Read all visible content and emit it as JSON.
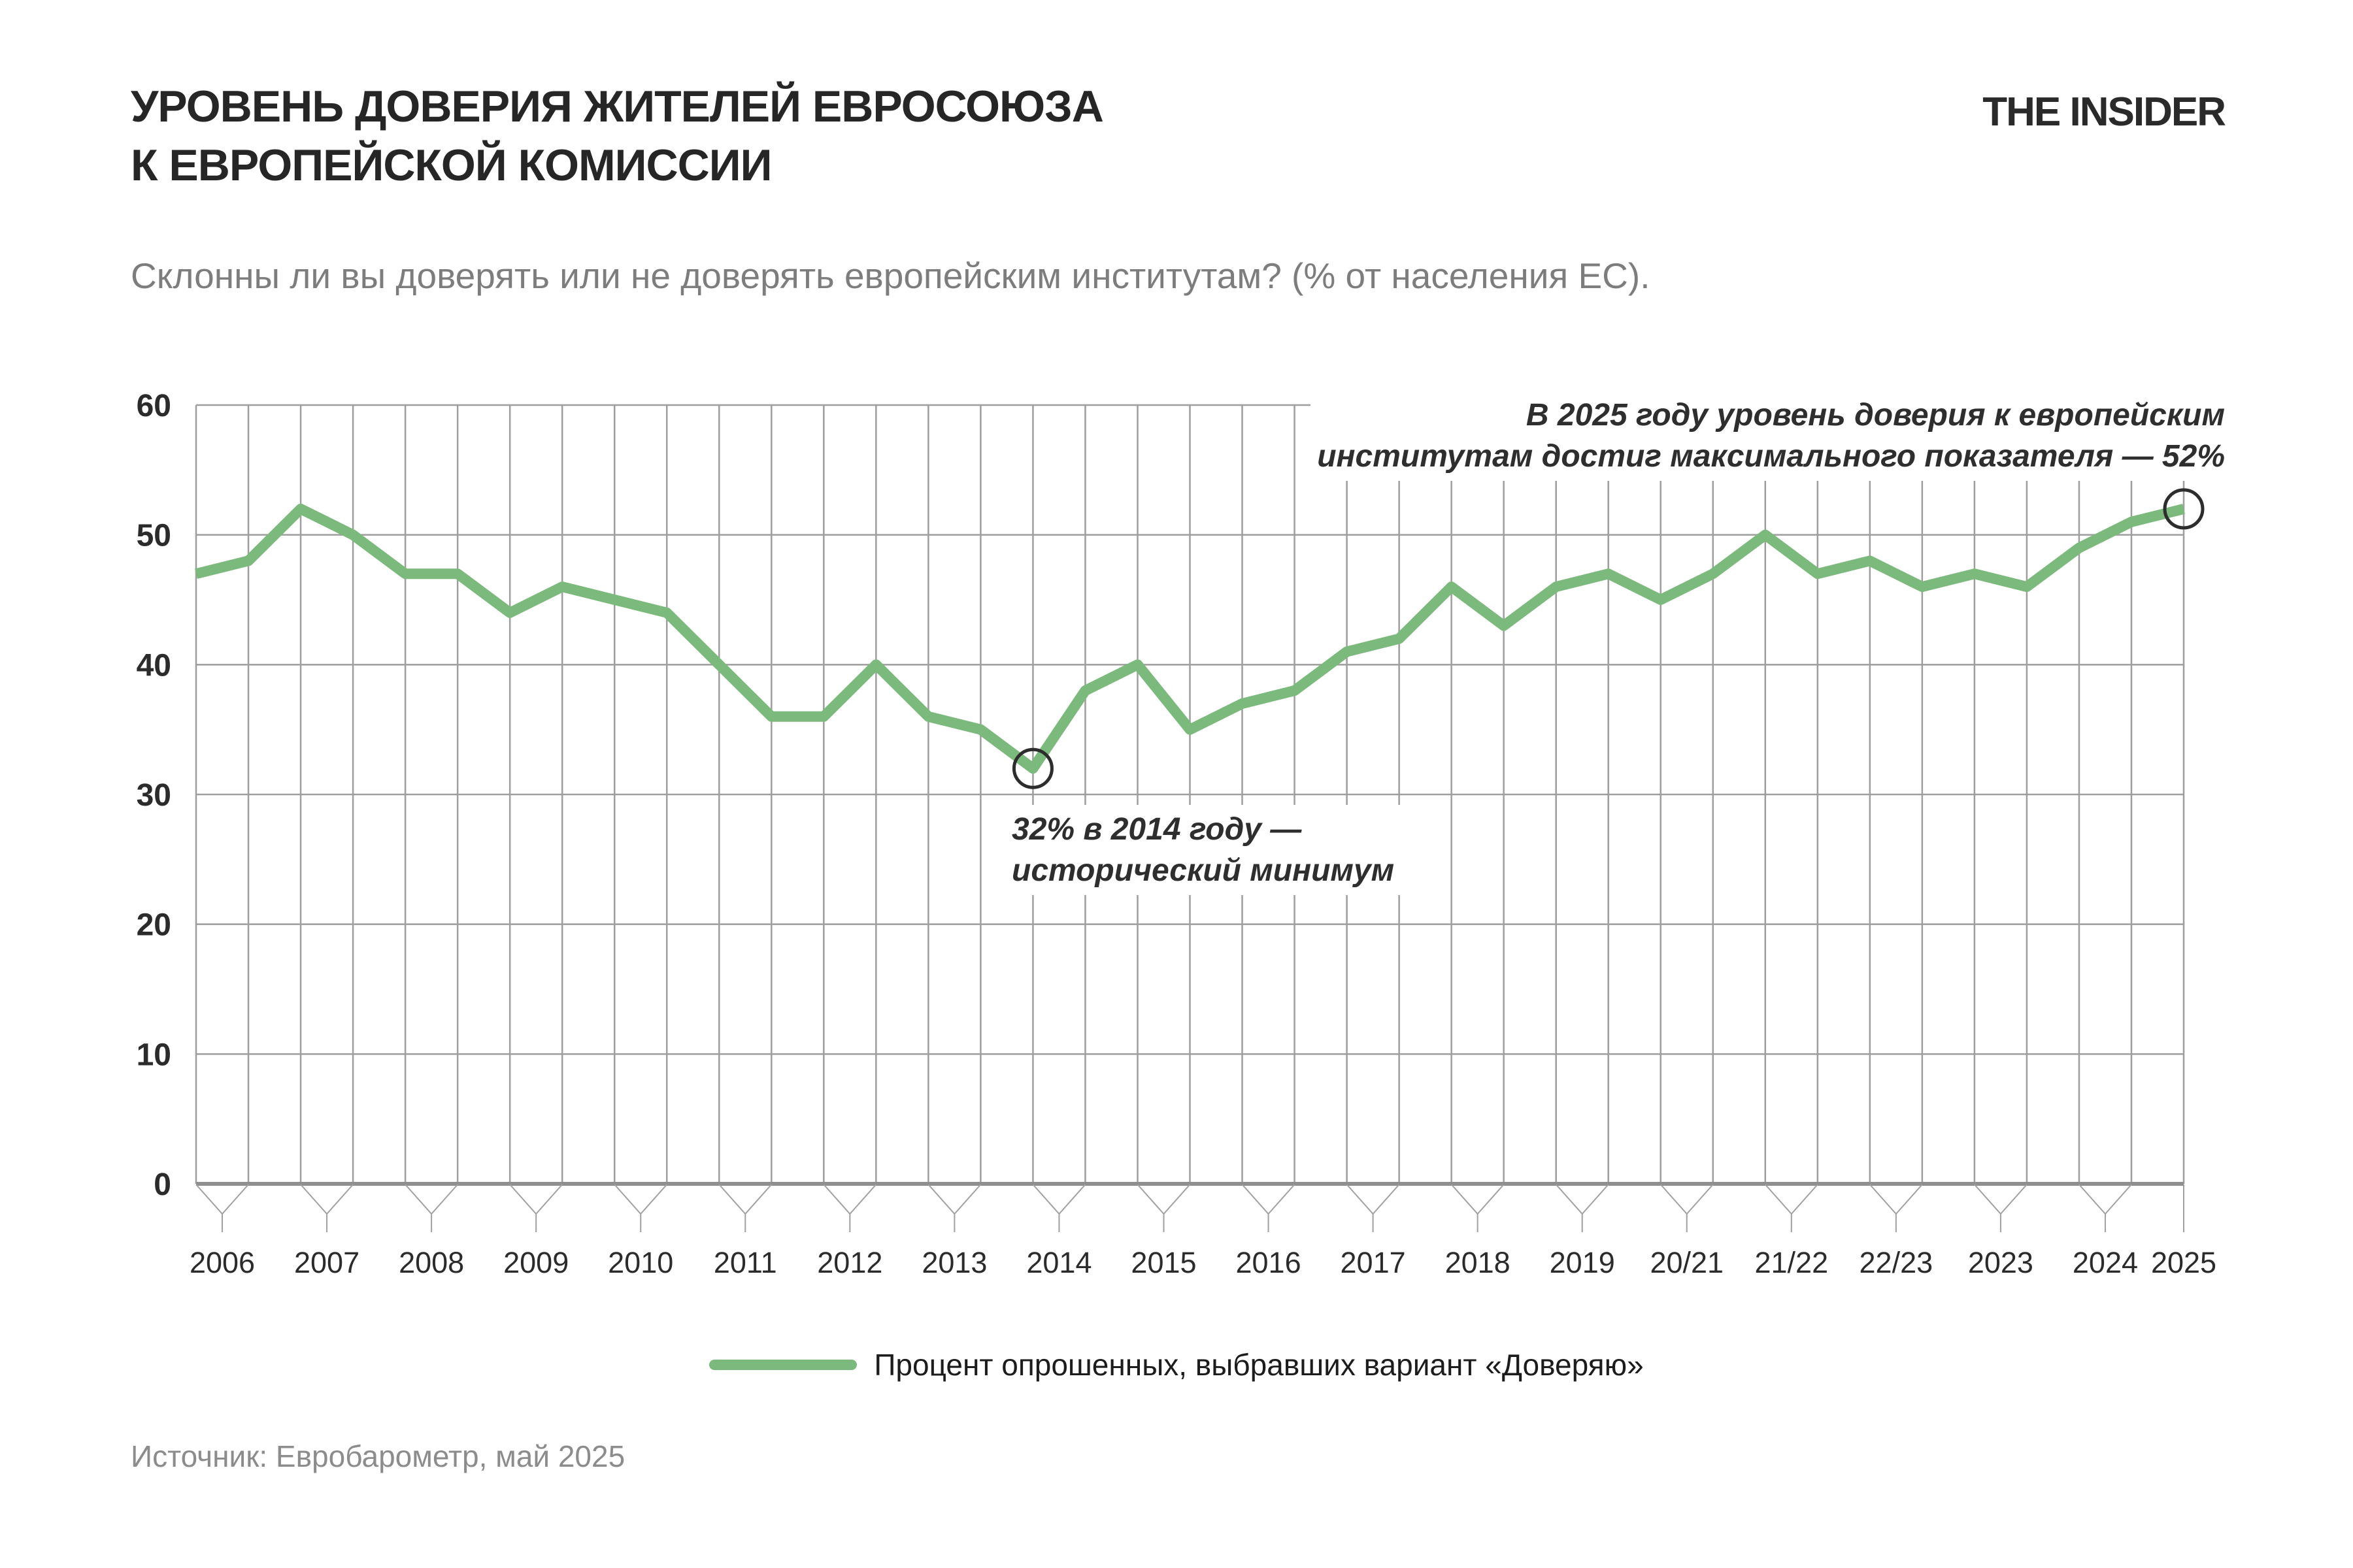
{
  "logo": "THE INSIDER",
  "title": {
    "line1": "УРОВЕНЬ ДОВЕРИЯ ЖИТЕЛЕЙ ЕВРОСОЮЗА",
    "line2": "К ЕВРОПЕЙСКОЙ КОМИССИИ"
  },
  "subtitle": "Склонны ли вы доверять или не доверять европейским институтам? (% от населения ЕС).",
  "annotations": {
    "max": {
      "line1": "В 2025 году уровень доверия к европейским",
      "line2": "институтам достиг максимального показателя — 52%"
    },
    "min": {
      "line1": "32% в 2014 году —",
      "line2": "исторический минимум"
    }
  },
  "legend": {
    "label": "Процент опрошенных, выбравших вариант «Доверяю»"
  },
  "source": "Источник: Евробарометр, май 2025",
  "colors": {
    "line": "#7cb97c",
    "grid": "#9e9e9e",
    "axis": "#8f8f8f",
    "tick": "#a0a0a0",
    "circle": "#2d2d2d",
    "title": "#262626",
    "subtitle": "#7d7d7d",
    "labels": "#2b2b2b",
    "source": "#8c8c8c"
  },
  "chart_data": {
    "type": "line",
    "title": "Уровень доверия жителей Евросоюза к Европейской комиссии",
    "ylabel": "",
    "xlabel": "",
    "ylim": [
      0,
      60
    ],
    "yticks": [
      0,
      10,
      20,
      30,
      40,
      50,
      60
    ],
    "grid": true,
    "legend_position": "bottom",
    "line_color": "#7cb97c",
    "categories": [
      "2006",
      "2007",
      "2008",
      "2009",
      "2010",
      "2011",
      "2012",
      "2013",
      "2014",
      "2015",
      "2016",
      "2017",
      "2018",
      "2019",
      "20/21",
      "21/22",
      "22/23",
      "2023",
      "2024",
      "2025"
    ],
    "series": [
      {
        "name": "Процент опрошенных, выбравших вариант «Доверяю»",
        "points": [
          {
            "period": "2006",
            "value": 47
          },
          {
            "period": "2006",
            "value": 48
          },
          {
            "period": "2007",
            "value": 52
          },
          {
            "period": "2007",
            "value": 50
          },
          {
            "period": "2008",
            "value": 47
          },
          {
            "period": "2008",
            "value": 47
          },
          {
            "period": "2009",
            "value": 44
          },
          {
            "period": "2009",
            "value": 46
          },
          {
            "period": "2010",
            "value": 45
          },
          {
            "period": "2010",
            "value": 44
          },
          {
            "period": "2011",
            "value": 40
          },
          {
            "period": "2011",
            "value": 36
          },
          {
            "period": "2012",
            "value": 36
          },
          {
            "period": "2012",
            "value": 40
          },
          {
            "period": "2013",
            "value": 36
          },
          {
            "period": "2013",
            "value": 35
          },
          {
            "period": "2014",
            "value": 32
          },
          {
            "period": "2014",
            "value": 38
          },
          {
            "period": "2015",
            "value": 40
          },
          {
            "period": "2015",
            "value": 35
          },
          {
            "period": "2016",
            "value": 37
          },
          {
            "period": "2016",
            "value": 38
          },
          {
            "period": "2017",
            "value": 41
          },
          {
            "period": "2017",
            "value": 42
          },
          {
            "period": "2018",
            "value": 46
          },
          {
            "period": "2018",
            "value": 43
          },
          {
            "period": "2019",
            "value": 46
          },
          {
            "period": "2019",
            "value": 47
          },
          {
            "period": "20/21",
            "value": 45
          },
          {
            "period": "20/21",
            "value": 47
          },
          {
            "period": "21/22",
            "value": 50
          },
          {
            "period": "21/22",
            "value": 47
          },
          {
            "period": "22/23",
            "value": 48
          },
          {
            "period": "22/23",
            "value": 46
          },
          {
            "period": "2023",
            "value": 47
          },
          {
            "period": "2023",
            "value": 46
          },
          {
            "period": "2024",
            "value": 49
          },
          {
            "period": "2024",
            "value": 51
          },
          {
            "period": "2025",
            "value": 52
          }
        ]
      }
    ],
    "annotated_points": [
      {
        "index": 16,
        "period": "2014",
        "value": 32,
        "note": "32% в 2014 году — исторический минимум"
      },
      {
        "index": 38,
        "period": "2025",
        "value": 52,
        "note": "В 2025 году уровень доверия к европейским институтам достиг максимального показателя — 52%"
      }
    ]
  }
}
